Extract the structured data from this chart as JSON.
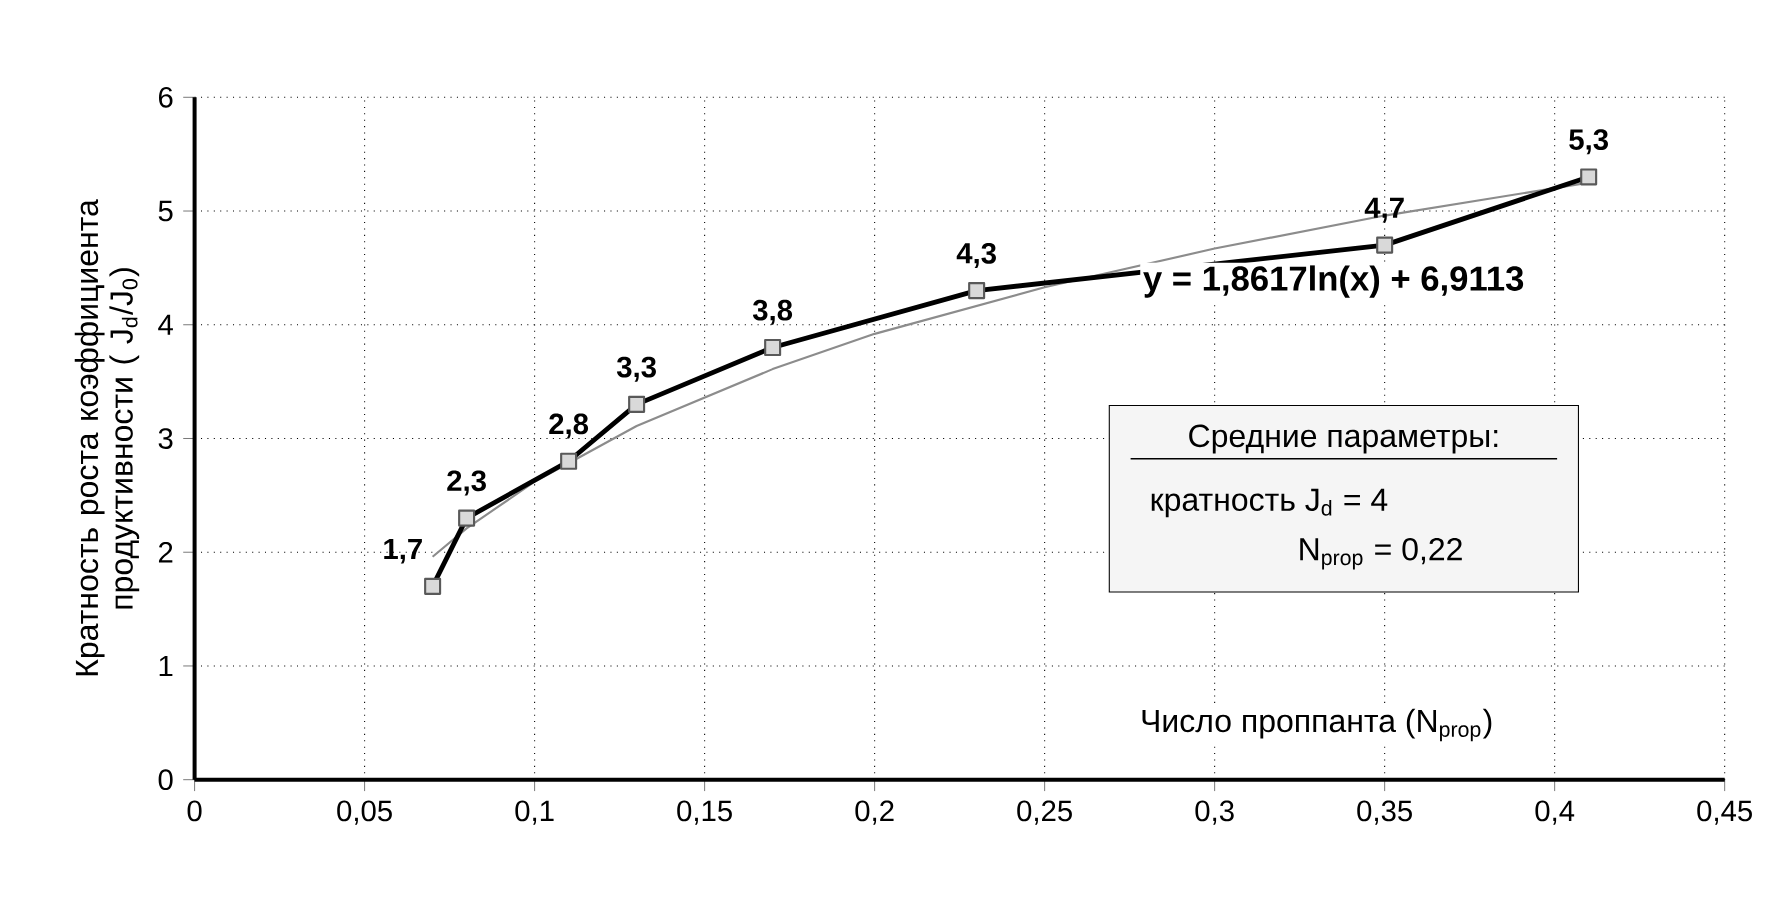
{
  "chart_data": {
    "type": "line",
    "xlabel": "Число проппанта (N$_{prop}$)",
    "ylabel": "Кратность  роста коэффициента продуктивности ( J$_{d}$/J$_{0}$)",
    "annotations": [
      "y = 1,8617ln(x) + 6,9113",
      "Средние параметры:",
      "кратность J$_{d}$     =  4",
      "N$_{prop}$ =  0,22"
    ],
    "series": [
      {
        "color": "#000000",
        "marker": "square",
        "x": [
          0.07,
          0.08,
          0.11,
          0.13,
          0.17,
          0.23,
          0.35,
          0.41
        ],
        "values": [
          1.7,
          2.3,
          2.8,
          3.3,
          3.8,
          4.3,
          4.7,
          5.3
        ],
        "value_labels": [
          "1,7",
          "2,3",
          "2,8",
          "3,3",
          "3,8",
          "4,3",
          "4,7",
          "5,3"
        ]
      },
      {
        "color": "#8c8c8c",
        "marker": "none",
        "x": [
          0.07,
          0.08,
          0.1,
          0.13,
          0.17,
          0.2,
          0.25,
          0.3,
          0.35,
          0.41
        ],
        "values": [
          1.96,
          2.21,
          2.62,
          3.11,
          3.61,
          3.92,
          4.33,
          4.67,
          4.96,
          5.25
        ]
      }
    ],
    "xlim": [
      0,
      0.45
    ],
    "ylim": [
      0,
      6
    ],
    "xticks": [
      0,
      {
        "value": 0.05,
        "label": "0,05"
      },
      {
        "value": 0.1,
        "label": "0,1"
      },
      {
        "value": 0.15,
        "label": "0,15"
      },
      {
        "value": 0.2,
        "label": "0,2"
      },
      {
        "value": 0.25,
        "label": "0,25"
      },
      {
        "value": 0.3,
        "label": "0,3"
      },
      {
        "value": 0.35,
        "label": "0,35"
      },
      {
        "value": 0.4,
        "label": "0,4"
      },
      {
        "value": 0.45,
        "label": "0,45"
      }
    ],
    "yticks": [
      0,
      1,
      2,
      3,
      4,
      5,
      6
    ],
    "grid": true
  }
}
